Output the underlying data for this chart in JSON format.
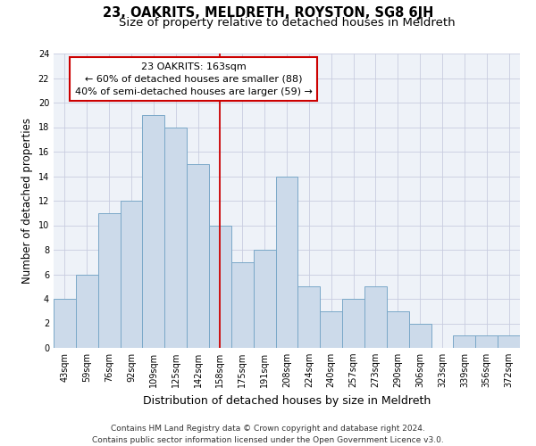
{
  "title": "23, OAKRITS, MELDRETH, ROYSTON, SG8 6JH",
  "subtitle": "Size of property relative to detached houses in Meldreth",
  "xlabel": "Distribution of detached houses by size in Meldreth",
  "ylabel": "Number of detached properties",
  "categories": [
    "43sqm",
    "59sqm",
    "76sqm",
    "92sqm",
    "109sqm",
    "125sqm",
    "142sqm",
    "158sqm",
    "175sqm",
    "191sqm",
    "208sqm",
    "224sqm",
    "240sqm",
    "257sqm",
    "273sqm",
    "290sqm",
    "306sqm",
    "323sqm",
    "339sqm",
    "356sqm",
    "372sqm"
  ],
  "values": [
    4,
    6,
    11,
    12,
    19,
    18,
    15,
    10,
    7,
    8,
    14,
    5,
    3,
    4,
    5,
    3,
    2,
    0,
    1,
    1,
    1
  ],
  "bar_color": "#ccdaea",
  "bar_edge_color": "#7aa8c8",
  "highlight_index": 7,
  "highlight_line_color": "#cc0000",
  "annotation_line1": "23 OAKRITS: 163sqm",
  "annotation_line2": "← 60% of detached houses are smaller (88)",
  "annotation_line3": "40% of semi-detached houses are larger (59) →",
  "annotation_box_color": "#ffffff",
  "annotation_box_edge_color": "#cc0000",
  "ylim": [
    0,
    24
  ],
  "yticks": [
    0,
    2,
    4,
    6,
    8,
    10,
    12,
    14,
    16,
    18,
    20,
    22,
    24
  ],
  "grid_color": "#c8cce0",
  "background_color": "#eef2f8",
  "footer_line1": "Contains HM Land Registry data © Crown copyright and database right 2024.",
  "footer_line2": "Contains public sector information licensed under the Open Government Licence v3.0.",
  "title_fontsize": 10.5,
  "subtitle_fontsize": 9.5,
  "xlabel_fontsize": 9,
  "ylabel_fontsize": 8.5,
  "tick_fontsize": 7,
  "annotation_fontsize": 8,
  "footer_fontsize": 6.5
}
